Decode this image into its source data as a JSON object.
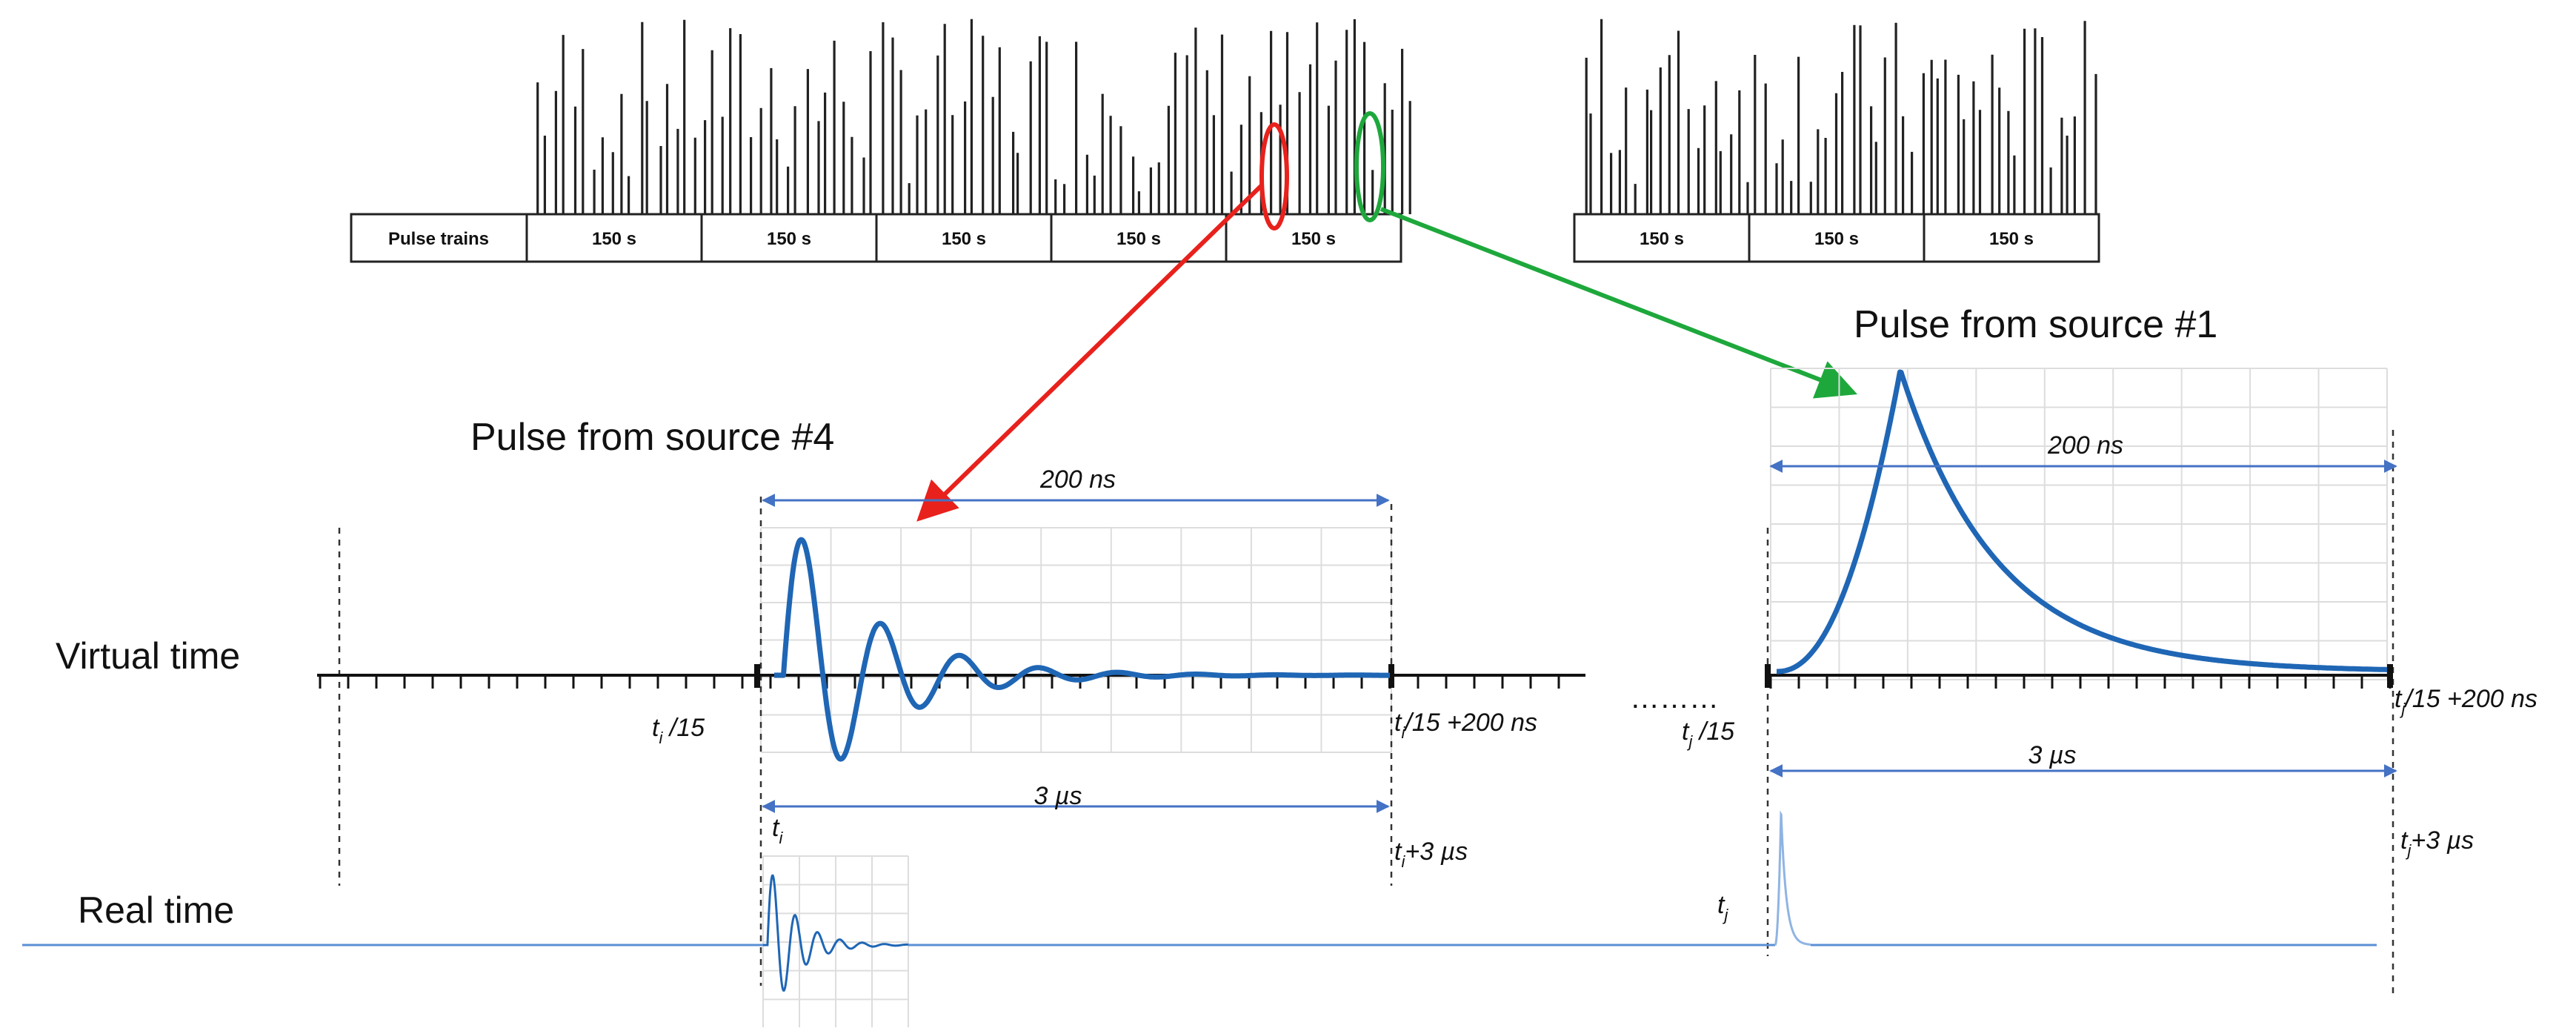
{
  "pulse_trains": {
    "label": "Pulse trains",
    "group1_cells": [
      "150 s",
      "150 s",
      "150 s",
      "150 s",
      "150 s"
    ],
    "group2_cells": [
      "150 s",
      "150 s",
      "150 s"
    ]
  },
  "source4": {
    "heading": "Pulse from source #4",
    "window": "200 ns",
    "duration": "3 µs",
    "start_label": {
      "main": "t",
      "sub": "i",
      "rest": " /15"
    },
    "end_label": {
      "main": "t",
      "sub": "i",
      "rest": "/15 +200 ns"
    },
    "real_start": {
      "main": "t",
      "sub": "i",
      "rest": ""
    },
    "real_end": {
      "main": "t",
      "sub": "i",
      "rest": "+3 µs"
    }
  },
  "source1": {
    "heading": "Pulse from source #1",
    "window": "200 ns",
    "duration": "3 µs",
    "start_label": {
      "main": "t",
      "sub": "j",
      "rest": " /15"
    },
    "end_label": {
      "main": "t",
      "sub": "j",
      "rest": "/15 +200 ns"
    },
    "real_start": {
      "main": "t",
      "sub": "j",
      "rest": ""
    },
    "real_end": {
      "main": "t",
      "sub": "j",
      "rest": "+3 µs"
    }
  },
  "axes": {
    "virtual_time": "Virtual time",
    "real_time": "Real time",
    "ellipsis": "………"
  },
  "colors": {
    "waveform": "#1f66b5",
    "dimension": "#4472c4",
    "highlight_source4": "#e8211c",
    "highlight_source1": "#1ea83c",
    "real_time_line": "#5b8fd6"
  }
}
